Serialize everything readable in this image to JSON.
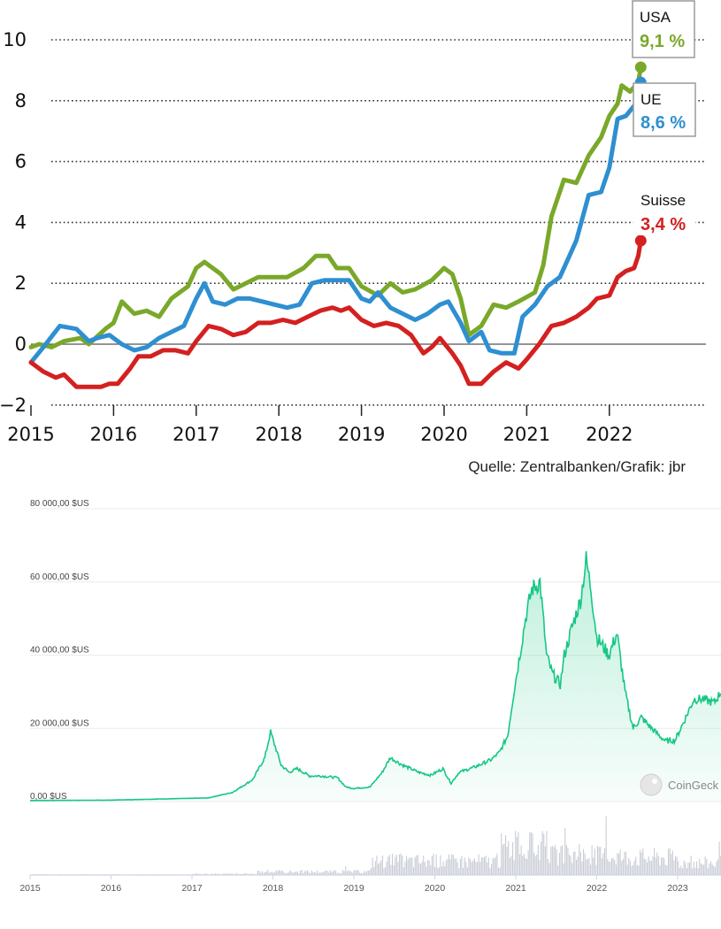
{
  "chart_data": [
    {
      "type": "line",
      "title": "",
      "xlabel": "",
      "ylabel": "",
      "ylim": [
        -2,
        10
      ],
      "y_ticks": [
        "−2",
        "0",
        "2",
        "4",
        "6",
        "8",
        "10"
      ],
      "x_ticks": [
        "2015",
        "2016",
        "2017",
        "2018",
        "2019",
        "2020",
        "2021",
        "2022"
      ],
      "grid": "dotted horizontal",
      "source": "Quelle: Zentralbanken/Grafik: jbr",
      "series": [
        {
          "name": "USA",
          "end_label": "9,1 %",
          "color": "#7aa82a",
          "points": [
            [
              2015.0,
              -0.1
            ],
            [
              2015.1,
              0.0
            ],
            [
              2015.25,
              -0.1
            ],
            [
              2015.4,
              0.1
            ],
            [
              2015.6,
              0.2
            ],
            [
              2015.7,
              0.0
            ],
            [
              2015.9,
              0.5
            ],
            [
              2016.0,
              0.7
            ],
            [
              2016.1,
              1.4
            ],
            [
              2016.25,
              1.0
            ],
            [
              2016.4,
              1.1
            ],
            [
              2016.55,
              0.9
            ],
            [
              2016.7,
              1.5
            ],
            [
              2016.9,
              1.9
            ],
            [
              2017.0,
              2.5
            ],
            [
              2017.1,
              2.7
            ],
            [
              2017.3,
              2.3
            ],
            [
              2017.45,
              1.8
            ],
            [
              2017.6,
              2.0
            ],
            [
              2017.75,
              2.2
            ],
            [
              2017.95,
              2.2
            ],
            [
              2018.1,
              2.2
            ],
            [
              2018.3,
              2.5
            ],
            [
              2018.45,
              2.9
            ],
            [
              2018.6,
              2.9
            ],
            [
              2018.7,
              2.5
            ],
            [
              2018.85,
              2.5
            ],
            [
              2019.0,
              1.9
            ],
            [
              2019.2,
              1.6
            ],
            [
              2019.35,
              2.0
            ],
            [
              2019.5,
              1.7
            ],
            [
              2019.65,
              1.8
            ],
            [
              2019.85,
              2.1
            ],
            [
              2020.0,
              2.5
            ],
            [
              2020.1,
              2.3
            ],
            [
              2020.2,
              1.5
            ],
            [
              2020.3,
              0.3
            ],
            [
              2020.45,
              0.6
            ],
            [
              2020.6,
              1.3
            ],
            [
              2020.75,
              1.2
            ],
            [
              2020.9,
              1.4
            ],
            [
              2021.1,
              1.7
            ],
            [
              2021.2,
              2.6
            ],
            [
              2021.3,
              4.2
            ],
            [
              2021.45,
              5.4
            ],
            [
              2021.6,
              5.3
            ],
            [
              2021.75,
              6.2
            ],
            [
              2021.9,
              6.8
            ],
            [
              2022.0,
              7.5
            ],
            [
              2022.1,
              7.9
            ],
            [
              2022.15,
              8.5
            ],
            [
              2022.25,
              8.3
            ],
            [
              2022.35,
              8.6
            ],
            [
              2022.38,
              9.1
            ]
          ]
        },
        {
          "name": "UE",
          "end_label": "8,6 %",
          "color": "#2e8fd1",
          "points": [
            [
              2015.0,
              -0.6
            ],
            [
              2015.15,
              -0.1
            ],
            [
              2015.35,
              0.6
            ],
            [
              2015.55,
              0.5
            ],
            [
              2015.7,
              0.1
            ],
            [
              2015.8,
              0.2
            ],
            [
              2015.95,
              0.3
            ],
            [
              2016.1,
              0.0
            ],
            [
              2016.25,
              -0.2
            ],
            [
              2016.4,
              -0.1
            ],
            [
              2016.55,
              0.2
            ],
            [
              2016.7,
              0.4
            ],
            [
              2016.85,
              0.6
            ],
            [
              2017.0,
              1.5
            ],
            [
              2017.1,
              2.0
            ],
            [
              2017.2,
              1.4
            ],
            [
              2017.35,
              1.3
            ],
            [
              2017.5,
              1.5
            ],
            [
              2017.65,
              1.5
            ],
            [
              2017.8,
              1.4
            ],
            [
              2017.95,
              1.3
            ],
            [
              2018.1,
              1.2
            ],
            [
              2018.25,
              1.3
            ],
            [
              2018.4,
              2.0
            ],
            [
              2018.55,
              2.1
            ],
            [
              2018.7,
              2.1
            ],
            [
              2018.85,
              2.1
            ],
            [
              2019.0,
              1.5
            ],
            [
              2019.1,
              1.4
            ],
            [
              2019.2,
              1.7
            ],
            [
              2019.35,
              1.2
            ],
            [
              2019.5,
              1.0
            ],
            [
              2019.65,
              0.8
            ],
            [
              2019.8,
              1.0
            ],
            [
              2019.95,
              1.3
            ],
            [
              2020.05,
              1.4
            ],
            [
              2020.2,
              0.7
            ],
            [
              2020.3,
              0.1
            ],
            [
              2020.45,
              0.4
            ],
            [
              2020.55,
              -0.2
            ],
            [
              2020.7,
              -0.3
            ],
            [
              2020.85,
              -0.3
            ],
            [
              2020.95,
              0.9
            ],
            [
              2021.1,
              1.3
            ],
            [
              2021.25,
              1.9
            ],
            [
              2021.4,
              2.2
            ],
            [
              2021.6,
              3.4
            ],
            [
              2021.75,
              4.9
            ],
            [
              2021.9,
              5.0
            ],
            [
              2022.0,
              5.8
            ],
            [
              2022.1,
              7.4
            ],
            [
              2022.2,
              7.5
            ],
            [
              2022.35,
              8.0
            ],
            [
              2022.38,
              8.6
            ]
          ]
        },
        {
          "name": "Suisse",
          "end_label": "3,4 %",
          "color": "#d42020",
          "points": [
            [
              2015.0,
              -0.6
            ],
            [
              2015.15,
              -0.9
            ],
            [
              2015.3,
              -1.1
            ],
            [
              2015.4,
              -1.0
            ],
            [
              2015.55,
              -1.4
            ],
            [
              2015.7,
              -1.4
            ],
            [
              2015.85,
              -1.4
            ],
            [
              2015.95,
              -1.3
            ],
            [
              2016.05,
              -1.3
            ],
            [
              2016.2,
              -0.8
            ],
            [
              2016.3,
              -0.4
            ],
            [
              2016.45,
              -0.4
            ],
            [
              2016.6,
              -0.2
            ],
            [
              2016.75,
              -0.2
            ],
            [
              2016.9,
              -0.3
            ],
            [
              2017.0,
              0.1
            ],
            [
              2017.15,
              0.6
            ],
            [
              2017.3,
              0.5
            ],
            [
              2017.45,
              0.3
            ],
            [
              2017.6,
              0.4
            ],
            [
              2017.75,
              0.7
            ],
            [
              2017.9,
              0.7
            ],
            [
              2018.05,
              0.8
            ],
            [
              2018.2,
              0.7
            ],
            [
              2018.35,
              0.9
            ],
            [
              2018.5,
              1.1
            ],
            [
              2018.65,
              1.2
            ],
            [
              2018.75,
              1.1
            ],
            [
              2018.85,
              1.2
            ],
            [
              2019.0,
              0.8
            ],
            [
              2019.15,
              0.6
            ],
            [
              2019.3,
              0.7
            ],
            [
              2019.45,
              0.6
            ],
            [
              2019.6,
              0.3
            ],
            [
              2019.75,
              -0.3
            ],
            [
              2019.85,
              -0.1
            ],
            [
              2019.95,
              0.2
            ],
            [
              2020.1,
              -0.3
            ],
            [
              2020.2,
              -0.7
            ],
            [
              2020.3,
              -1.3
            ],
            [
              2020.45,
              -1.3
            ],
            [
              2020.6,
              -0.9
            ],
            [
              2020.75,
              -0.6
            ],
            [
              2020.9,
              -0.8
            ],
            [
              2021.0,
              -0.5
            ],
            [
              2021.15,
              0.0
            ],
            [
              2021.3,
              0.6
            ],
            [
              2021.45,
              0.7
            ],
            [
              2021.6,
              0.9
            ],
            [
              2021.75,
              1.2
            ],
            [
              2021.85,
              1.5
            ],
            [
              2022.0,
              1.6
            ],
            [
              2022.1,
              2.2
            ],
            [
              2022.2,
              2.4
            ],
            [
              2022.3,
              2.5
            ],
            [
              2022.35,
              2.9
            ],
            [
              2022.38,
              3.4
            ]
          ]
        }
      ]
    },
    {
      "type": "area",
      "title": "",
      "xlabel": "",
      "ylabel": "",
      "ylim": [
        0,
        80000
      ],
      "y_ticks": [
        "0,00 $US",
        "20 000,00 $US",
        "40 000,00 $US",
        "60 000,00 $US",
        "80 000,00 $US"
      ],
      "x_ticks": [
        "2015",
        "2016",
        "2017",
        "2018",
        "2019",
        "2020",
        "2021",
        "2022",
        "2023"
      ],
      "brand": "CoinGeck",
      "series": [
        {
          "name": "price",
          "color": "#16c784",
          "points": [
            [
              2015.0,
              300
            ],
            [
              2016.0,
              400
            ],
            [
              2016.8,
              800
            ],
            [
              2017.2,
              1000
            ],
            [
              2017.5,
              2500
            ],
            [
              2017.75,
              6000
            ],
            [
              2017.9,
              12000
            ],
            [
              2017.97,
              19000
            ],
            [
              2018.03,
              15000
            ],
            [
              2018.1,
              10000
            ],
            [
              2018.2,
              8000
            ],
            [
              2018.3,
              9000
            ],
            [
              2018.45,
              7000
            ],
            [
              2018.6,
              7000
            ],
            [
              2018.8,
              6500
            ],
            [
              2018.9,
              4000
            ],
            [
              2019.0,
              3600
            ],
            [
              2019.2,
              4000
            ],
            [
              2019.35,
              8000
            ],
            [
              2019.45,
              12000
            ],
            [
              2019.6,
              10000
            ],
            [
              2019.8,
              8000
            ],
            [
              2019.95,
              7200
            ],
            [
              2020.1,
              9000
            ],
            [
              2020.2,
              5000
            ],
            [
              2020.3,
              8000
            ],
            [
              2020.5,
              9500
            ],
            [
              2020.7,
              11500
            ],
            [
              2020.8,
              13500
            ],
            [
              2020.9,
              18000
            ],
            [
              2020.97,
              29000
            ],
            [
              2021.05,
              40000
            ],
            [
              2021.12,
              50000
            ],
            [
              2021.2,
              58000
            ],
            [
              2021.3,
              60000
            ],
            [
              2021.38,
              40000
            ],
            [
              2021.45,
              35000
            ],
            [
              2021.55,
              32000
            ],
            [
              2021.6,
              40000
            ],
            [
              2021.7,
              48000
            ],
            [
              2021.8,
              55000
            ],
            [
              2021.87,
              66000
            ],
            [
              2021.93,
              58000
            ],
            [
              2022.0,
              45000
            ],
            [
              2022.15,
              40000
            ],
            [
              2022.25,
              46000
            ],
            [
              2022.35,
              30000
            ],
            [
              2022.45,
              20000
            ],
            [
              2022.55,
              23000
            ],
            [
              2022.7,
              19500
            ],
            [
              2022.85,
              16500
            ],
            [
              2022.97,
              16800
            ],
            [
              2023.1,
              23000
            ],
            [
              2023.2,
              28000
            ],
            [
              2023.3,
              28000
            ],
            [
              2023.45,
              27000
            ],
            [
              2023.55,
              30500
            ]
          ]
        },
        {
          "name": "volume",
          "color": "#c8ccd4"
        }
      ]
    }
  ]
}
